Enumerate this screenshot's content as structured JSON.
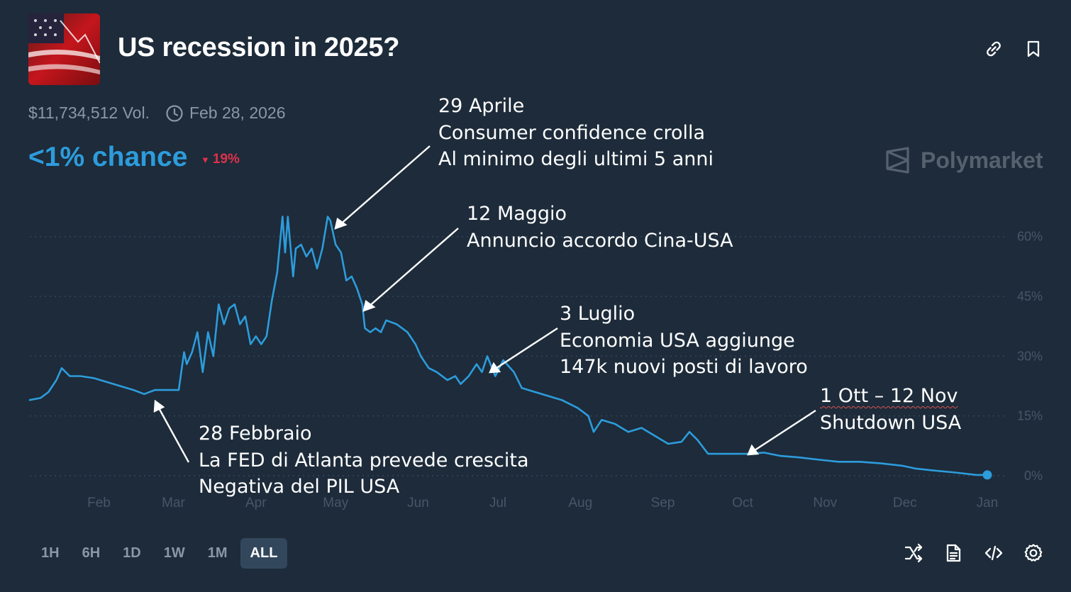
{
  "market": {
    "title": "US recession in 2025?",
    "volume": "$11,734,512 Vol.",
    "end_date": "Feb 28, 2026",
    "chance": "<1% chance",
    "change": "19%",
    "change_direction": "down",
    "brand": "Polymarket"
  },
  "icons": {
    "link": "link-icon",
    "bookmark": "bookmark-icon",
    "clock": "clock-icon",
    "shuffle": "shuffle-icon",
    "document": "document-icon",
    "embed": "code-icon",
    "settings": "gear-icon"
  },
  "colors": {
    "background": "#1d2b3a",
    "line": "#2d9cdb",
    "down": "#e0314b",
    "muted": "#8a97a6"
  },
  "time_ranges": [
    "1H",
    "6H",
    "1D",
    "1W",
    "1M",
    "ALL"
  ],
  "active_range": "ALL",
  "annotations": [
    {
      "lines": [
        "29 Aprile",
        "Consumer confidence crolla",
        "Al minimo degli ultimi 5 anni"
      ]
    },
    {
      "lines": [
        "12 Maggio",
        "Annuncio accordo Cina-USA"
      ]
    },
    {
      "lines": [
        "3 Luglio",
        "Economia USA aggiunge",
        "147k nuovi posti di lavoro"
      ]
    },
    {
      "lines": [
        "1 Ott – 12 Nov",
        "Shutdown USA"
      ]
    },
    {
      "lines": [
        "28 Febbraio",
        "La FED di Atlanta prevede crescita",
        "Negativa del PIL USA"
      ]
    }
  ],
  "chart_data": {
    "type": "line",
    "ylabel_ticks": [
      "0%",
      "15%",
      "30%",
      "45%",
      "60%"
    ],
    "y_ticks": [
      0,
      15,
      30,
      45,
      60
    ],
    "x_ticks": [
      "Feb",
      "Mar",
      "Apr",
      "May",
      "Jun",
      "Jul",
      "Aug",
      "Sep",
      "Oct",
      "Nov",
      "Dec",
      "Jan"
    ],
    "x_range": [
      "2025-01-06",
      "2026-01-01"
    ],
    "ylim": [
      0,
      66
    ],
    "grid": true,
    "series": [
      {
        "points": [
          [
            "2025-01-06",
            19
          ],
          [
            "2025-01-10",
            19.5
          ],
          [
            "2025-01-13",
            21
          ],
          [
            "2025-01-16",
            24
          ],
          [
            "2025-01-18",
            27
          ],
          [
            "2025-01-21",
            25
          ],
          [
            "2025-01-25",
            25
          ],
          [
            "2025-01-30",
            24.5
          ],
          [
            "2025-02-04",
            23.5
          ],
          [
            "2025-02-09",
            22.5
          ],
          [
            "2025-02-14",
            21.5
          ],
          [
            "2025-02-18",
            20.5
          ],
          [
            "2025-02-22",
            21.5
          ],
          [
            "2025-02-27",
            21.5
          ],
          [
            "2025-03-01",
            21.5
          ],
          [
            "2025-03-03",
            21.5
          ],
          [
            "2025-03-05",
            31
          ],
          [
            "2025-03-06",
            28
          ],
          [
            "2025-03-08",
            31
          ],
          [
            "2025-03-10",
            36
          ],
          [
            "2025-03-12",
            26
          ],
          [
            "2025-03-14",
            36
          ],
          [
            "2025-03-16",
            30
          ],
          [
            "2025-03-18",
            43
          ],
          [
            "2025-03-20",
            38
          ],
          [
            "2025-03-22",
            42
          ],
          [
            "2025-03-24",
            43
          ],
          [
            "2025-03-26",
            38
          ],
          [
            "2025-03-28",
            40
          ],
          [
            "2025-03-30",
            33
          ],
          [
            "2025-04-01",
            35
          ],
          [
            "2025-04-03",
            33
          ],
          [
            "2025-04-05",
            35
          ],
          [
            "2025-04-07",
            44
          ],
          [
            "2025-04-09",
            51
          ],
          [
            "2025-04-11",
            65
          ],
          [
            "2025-04-12",
            56
          ],
          [
            "2025-04-13",
            65
          ],
          [
            "2025-04-15",
            50
          ],
          [
            "2025-04-16",
            57
          ],
          [
            "2025-04-18",
            58
          ],
          [
            "2025-04-20",
            55
          ],
          [
            "2025-04-22",
            57
          ],
          [
            "2025-04-24",
            52
          ],
          [
            "2025-04-26",
            57
          ],
          [
            "2025-04-28",
            65
          ],
          [
            "2025-04-29",
            64
          ],
          [
            "2025-05-01",
            58
          ],
          [
            "2025-05-03",
            56
          ],
          [
            "2025-05-05",
            49
          ],
          [
            "2025-05-07",
            50
          ],
          [
            "2025-05-09",
            47
          ],
          [
            "2025-05-11",
            43
          ],
          [
            "2025-05-12",
            37
          ],
          [
            "2025-05-14",
            36
          ],
          [
            "2025-05-16",
            37
          ],
          [
            "2025-05-18",
            36
          ],
          [
            "2025-05-20",
            39
          ],
          [
            "2025-05-24",
            38
          ],
          [
            "2025-05-28",
            36
          ],
          [
            "2025-05-31",
            33
          ],
          [
            "2025-06-02",
            30
          ],
          [
            "2025-06-05",
            27
          ],
          [
            "2025-06-08",
            26
          ],
          [
            "2025-06-12",
            24
          ],
          [
            "2025-06-15",
            25
          ],
          [
            "2025-06-17",
            23
          ],
          [
            "2025-06-20",
            25
          ],
          [
            "2025-06-23",
            28
          ],
          [
            "2025-06-25",
            26
          ],
          [
            "2025-06-27",
            30
          ],
          [
            "2025-06-30",
            25
          ],
          [
            "2025-07-03",
            29
          ],
          [
            "2025-07-07",
            26
          ],
          [
            "2025-07-10",
            22
          ],
          [
            "2025-07-15",
            21
          ],
          [
            "2025-07-20",
            20
          ],
          [
            "2025-07-25",
            19
          ],
          [
            "2025-07-31",
            17
          ],
          [
            "2025-08-04",
            15
          ],
          [
            "2025-08-06",
            11
          ],
          [
            "2025-08-09",
            14
          ],
          [
            "2025-08-14",
            13
          ],
          [
            "2025-08-19",
            11
          ],
          [
            "2025-08-24",
            12
          ],
          [
            "2025-08-29",
            10
          ],
          [
            "2025-09-03",
            8
          ],
          [
            "2025-09-08",
            8.5
          ],
          [
            "2025-09-11",
            11
          ],
          [
            "2025-09-14",
            9
          ],
          [
            "2025-09-18",
            5.5
          ],
          [
            "2025-09-22",
            5.5
          ],
          [
            "2025-09-27",
            5.5
          ],
          [
            "2025-10-03",
            5.5
          ],
          [
            "2025-10-09",
            5.8
          ],
          [
            "2025-10-15",
            5
          ],
          [
            "2025-10-22",
            4.6
          ],
          [
            "2025-10-30",
            4
          ],
          [
            "2025-11-06",
            3.5
          ],
          [
            "2025-11-14",
            3.5
          ],
          [
            "2025-11-22",
            3.1
          ],
          [
            "2025-11-30",
            2.5
          ],
          [
            "2025-12-05",
            1.8
          ],
          [
            "2025-12-12",
            1.3
          ],
          [
            "2025-12-20",
            0.8
          ],
          [
            "2025-12-28",
            0.2
          ],
          [
            "2026-01-01",
            0.2
          ]
        ]
      }
    ]
  }
}
